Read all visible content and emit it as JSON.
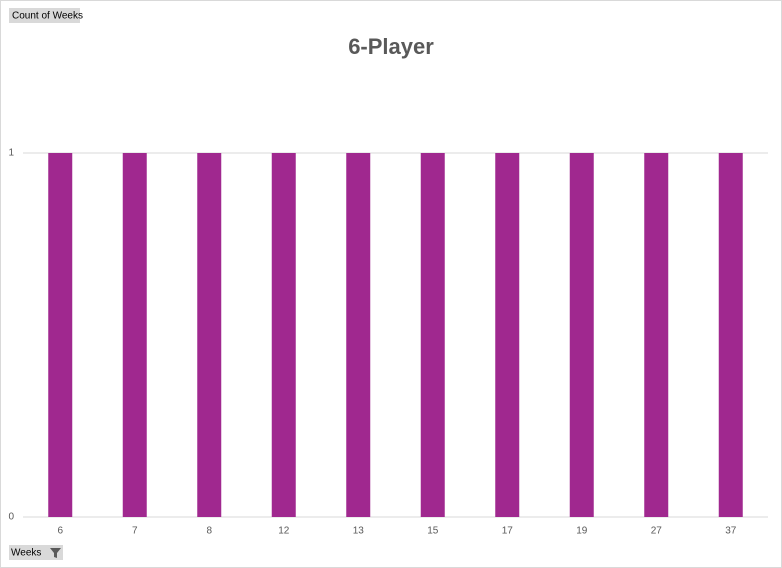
{
  "chart_data": {
    "type": "bar",
    "title": "6-Player",
    "value_field_button": "Count of Weeks",
    "axis_field_button": "Weeks",
    "categories": [
      "6",
      "7",
      "8",
      "12",
      "13",
      "15",
      "17",
      "19",
      "27",
      "37"
    ],
    "values": [
      1,
      1,
      1,
      1,
      1,
      1,
      1,
      1,
      1,
      1
    ],
    "color": "#a0288f",
    "ylim": [
      0,
      1
    ],
    "yticks": [
      0,
      1
    ],
    "grid": true
  }
}
